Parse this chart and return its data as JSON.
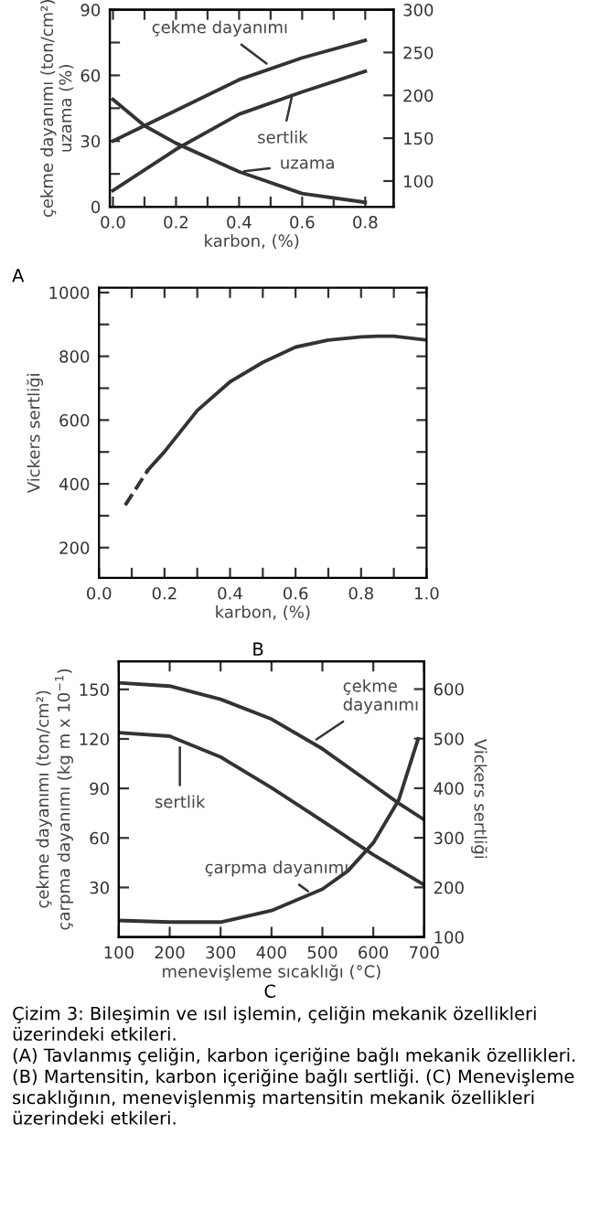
{
  "chart_data": [
    {
      "type": "line",
      "title": "A",
      "xlabel": "karbon, (%)",
      "ylabel": "çekme dayanımı (ton/cm²)\nuzama (%)",
      "xlim": [
        -0.01,
        0.89
      ],
      "ylim": [
        0,
        90
      ],
      "y2lim": [
        70,
        300
      ],
      "xticks": [
        {
          "value": 0,
          "label": "0.0"
        },
        {
          "value": 0.1,
          "label": null
        },
        0.2,
        {
          "value": 0.3,
          "label": null
        },
        0.4,
        {
          "value": 0.5,
          "label": null
        },
        0.6,
        {
          "value": 0.7,
          "label": null
        },
        0.8
      ],
      "yticks": [
        0,
        {
          "value": 15,
          "label": null
        },
        30,
        {
          "value": 45,
          "label": null
        },
        60,
        {
          "value": 75,
          "label": null
        },
        90
      ],
      "y2ticks": [
        100,
        150,
        200,
        250,
        300
      ],
      "grid": false,
      "legend": false,
      "marker": "none",
      "series": [
        {
          "color": "#333333",
          "x": [
            0.0,
            0.2,
            0.4,
            0.6,
            0.8
          ],
          "values": [
            30,
            44,
            58,
            68,
            76
          ]
        },
        {
          "color": "#333333",
          "axis": "y2",
          "x": [
            0.0,
            0.2,
            0.4,
            0.6,
            0.8
          ],
          "values": [
            89,
            137,
            178,
            204,
            228
          ]
        },
        {
          "color": "#333333",
          "x": [
            0.0,
            0.1,
            0.2,
            0.4,
            0.6,
            0.8
          ],
          "values": [
            49,
            37,
            29,
            16,
            6,
            2
          ]
        }
      ],
      "annotations": [
        {
          "text": "çekme dayanımı",
          "x": 0.5,
          "y": 64
        },
        {
          "text": "sertlik",
          "x": 0.57,
          "y": 52
        },
        {
          "text": "uzama",
          "x": 0.4,
          "y": 16
        }
      ]
    },
    {
      "type": "line",
      "title": "B",
      "xlabel": "karbon, (%)",
      "ylabel": "Vickers sertliği",
      "xlim": [
        0.0,
        1.0
      ],
      "ylim": [
        105,
        1015
      ],
      "xticks": [
        {
          "value": 0,
          "label": "0.0"
        },
        {
          "value": 0.1,
          "label": null
        },
        0.2,
        {
          "value": 0.3,
          "label": null
        },
        0.4,
        {
          "value": 0.5,
          "label": null
        },
        0.6,
        {
          "value": 0.7,
          "label": null
        },
        0.8,
        {
          "value": 0.9,
          "label": null
        },
        {
          "value": 1,
          "label": "1.0"
        }
      ],
      "yticks": [
        200,
        {
          "value": 300,
          "label": null
        },
        400,
        {
          "value": 500,
          "label": null
        },
        600,
        {
          "value": 700,
          "label": null
        },
        800,
        {
          "value": 900,
          "label": null
        },
        1000
      ],
      "grid": false,
      "legend": false,
      "marker": "none",
      "series": [
        {
          "color": "#333333",
          "line_style": "dashed",
          "x": [
            0.08,
            0.15
          ],
          "values": [
            333,
            444
          ]
        },
        {
          "color": "#333333",
          "line_style": "solid",
          "x": [
            0.15,
            0.2,
            0.3,
            0.4,
            0.5,
            0.6,
            0.7,
            0.8,
            0.85,
            0.9,
            1.0
          ],
          "values": [
            444,
            501,
            630,
            720,
            781,
            829,
            851,
            861,
            863,
            863,
            851
          ]
        }
      ]
    },
    {
      "type": "line",
      "title": "C",
      "xlabel": "menevişleme sıcaklığı (°C)",
      "ylabel": "çekme dayanımı (ton/cm²)\nçarpma dayanımı (kg m x 10$^{−1}$)",
      "y2label": "Vickers sertliği",
      "xlim": [
        100,
        700
      ],
      "ylim": [
        0,
        167
      ],
      "y2lim": [
        100,
        656
      ],
      "xticks": [
        100,
        200,
        300,
        400,
        500,
        600,
        700
      ],
      "yticks": [
        30,
        60,
        90,
        120,
        150
      ],
      "y2ticks": [
        100,
        200,
        300,
        400,
        500,
        600
      ],
      "grid": false,
      "legend": false,
      "marker": "none",
      "series": [
        {
          "color": "#333333",
          "x": [
            100,
            200,
            300,
            400,
            500,
            600,
            650,
            700
          ],
          "values": [
            154,
            152,
            144,
            132,
            114,
            92,
            81,
            71
          ]
        },
        {
          "color": "#333333",
          "axis": "y2",
          "x": [
            100,
            200,
            300,
            400,
            500,
            600,
            700
          ],
          "values": [
            512,
            505,
            463,
            401,
            334,
            266,
            205
          ]
        },
        {
          "color": "#333333",
          "x": [
            100,
            200,
            300,
            400,
            500,
            550,
            600,
            650,
            688
          ],
          "values": [
            10,
            9,
            9,
            16,
            29,
            40,
            57,
            83,
            120
          ]
        }
      ],
      "annotations": [
        {
          "text": "çekme\ndayanımı",
          "x": 480,
          "y": 118
        },
        {
          "text": "sertlik",
          "x": 220,
          "y": 118
        },
        {
          "text": "çarpma dayanımı",
          "x": 480,
          "y": 26
        },
        "Çizim 3: Bileşimin ve ısıl işlemin, çeliğin mekanik özellikleri üzerindeki etkileri.\n(A) Tavlanmış çeliğin, karbon içeriğine bağlı mekanik özellikleri.\n(B) Martensitin, karbon içeriğine bağlı sertliği. (C) Menevişleme sıcaklığının, menevişlenmiş martensitin mekanik özellikleri üzerindeki etkileri."
      ]
    }
  ]
}
